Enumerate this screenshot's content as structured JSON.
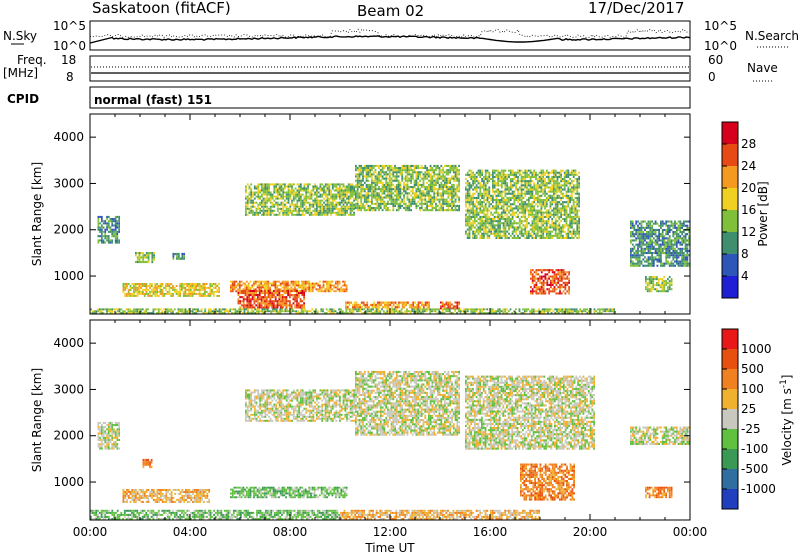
{
  "header": {
    "station": "Saskatoon (fitACF)",
    "beam": "Beam 02",
    "date": "17/Dec/2017"
  },
  "noise_panel": {
    "left_label": "N.Sky",
    "left_ticks": [
      "10^5",
      "10^0"
    ],
    "right_label": "N.Search",
    "right_ticks": [
      "10^5",
      "10^0"
    ]
  },
  "freq_panel": {
    "left_label_line1": "Freq.",
    "left_label_line2": "[MHz]",
    "left_ticks": [
      "18",
      "8"
    ],
    "right_label": "Nave",
    "right_ticks": [
      "60",
      "0"
    ]
  },
  "cpid": {
    "label": "CPID",
    "mode": "normal (fast) 151"
  },
  "chart_data": [
    {
      "type": "heatmap",
      "parameter": "Power",
      "ylabel": "Slant Range [km]",
      "ylim": [
        180,
        4500
      ],
      "yticks": [
        "1000",
        "2000",
        "3000",
        "4000"
      ],
      "colorbar_label": "Power [dB]",
      "colorbar_ticks": [
        "4",
        "8",
        "12",
        "16",
        "20",
        "24",
        "28"
      ],
      "colorbar_colors": [
        "#1f1fd6",
        "#2e55b8",
        "#3f8f6e",
        "#7fbf3a",
        "#f0d020",
        "#f59a20",
        "#e84a14",
        "#d6001c"
      ],
      "echo_regions": [
        {
          "t": [
            0.3,
            1.2
          ],
          "r": [
            1700,
            2300
          ],
          "level": 2
        },
        {
          "t": [
            1.8,
            2.6
          ],
          "r": [
            1280,
            1520
          ],
          "level": 3
        },
        {
          "t": [
            3.3,
            3.8
          ],
          "r": [
            1350,
            1500
          ],
          "level": 2
        },
        {
          "t": [
            6.2,
            10.6
          ],
          "r": [
            2300,
            3000
          ],
          "level": 3
        },
        {
          "t": [
            10.6,
            14.8
          ],
          "r": [
            2400,
            3400
          ],
          "level": 3
        },
        {
          "t": [
            15.0,
            19.6
          ],
          "r": [
            1800,
            3300
          ],
          "level": 3
        },
        {
          "t": [
            1.3,
            5.2
          ],
          "r": [
            550,
            850
          ],
          "level": 4
        },
        {
          "t": [
            5.6,
            10.3
          ],
          "r": [
            650,
            900
          ],
          "level": 5
        },
        {
          "t": [
            5.9,
            8.6
          ],
          "r": [
            300,
            700
          ],
          "level": 6
        },
        {
          "t": [
            10.2,
            13.6
          ],
          "r": [
            300,
            450
          ],
          "level": 5
        },
        {
          "t": [
            14.0,
            14.8
          ],
          "r": [
            280,
            450
          ],
          "level": 6
        },
        {
          "t": [
            17.6,
            19.2
          ],
          "r": [
            600,
            1150
          ],
          "level": 6
        },
        {
          "t": [
            21.6,
            24.0
          ],
          "r": [
            1200,
            2200
          ],
          "level": 2
        },
        {
          "t": [
            22.2,
            23.3
          ],
          "r": [
            650,
            1000
          ],
          "level": 3
        },
        {
          "t": [
            0.0,
            21.0
          ],
          "r": [
            180,
            300
          ],
          "level": 3
        }
      ]
    },
    {
      "type": "heatmap",
      "parameter": "Velocity",
      "ylabel": "Slant Range [km]",
      "ylim": [
        180,
        4500
      ],
      "yticks": [
        "1000",
        "2000",
        "3000",
        "4000"
      ],
      "colorbar_label": "Velocity [m s-1]",
      "colorbar_ticks": [
        "1000",
        "500",
        "100",
        "25",
        "-25",
        "-100",
        "-500",
        "-1000"
      ],
      "colorbar_colors": [
        "#1f3fbf",
        "#2f6e9f",
        "#3a9a55",
        "#60c040",
        "#c8c8be",
        "#f0b030",
        "#f08020",
        "#e85010",
        "#e81818"
      ],
      "xlabel": "Time UT",
      "xticks": [
        "00:00",
        "04:00",
        "08:00",
        "12:00",
        "16:00",
        "20:00",
        "00:00"
      ],
      "echo_regions": [
        {
          "t": [
            0.3,
            1.2
          ],
          "r": [
            1700,
            2300
          ],
          "level": 4
        },
        {
          "t": [
            2.1,
            2.5
          ],
          "r": [
            1300,
            1500
          ],
          "level": 6
        },
        {
          "t": [
            6.2,
            10.6
          ],
          "r": [
            2300,
            3000
          ],
          "level": 4
        },
        {
          "t": [
            10.6,
            14.8
          ],
          "r": [
            2000,
            3400
          ],
          "level": 4
        },
        {
          "t": [
            15.0,
            20.2
          ],
          "r": [
            1700,
            3300
          ],
          "level": 4
        },
        {
          "t": [
            1.3,
            4.8
          ],
          "r": [
            550,
            850
          ],
          "level": 5
        },
        {
          "t": [
            5.6,
            10.3
          ],
          "r": [
            650,
            900
          ],
          "level": 3
        },
        {
          "t": [
            17.2,
            19.4
          ],
          "r": [
            600,
            1400
          ],
          "level": 6
        },
        {
          "t": [
            21.6,
            24.0
          ],
          "r": [
            1800,
            2200
          ],
          "level": 4
        },
        {
          "t": [
            22.2,
            23.3
          ],
          "r": [
            650,
            900
          ],
          "level": 6
        },
        {
          "t": [
            0.0,
            10.0
          ],
          "r": [
            180,
            400
          ],
          "level": 3
        },
        {
          "t": [
            10.0,
            18.0
          ],
          "r": [
            180,
            400
          ],
          "level": 5
        }
      ]
    }
  ]
}
